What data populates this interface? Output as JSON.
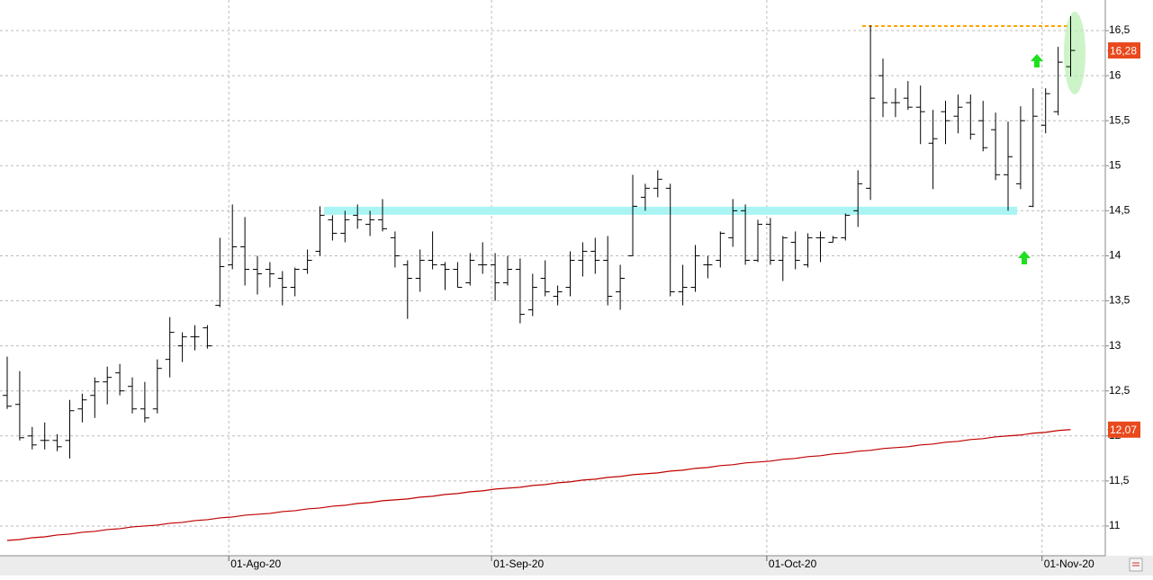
{
  "chart_data": {
    "type": "ohlc",
    "categories": [
      null,
      null,
      null,
      null,
      null,
      null,
      null,
      null,
      null,
      null,
      null,
      null,
      null,
      null,
      null,
      null,
      null,
      null,
      "01-Ago-20",
      null,
      null,
      null,
      null,
      null,
      null,
      null,
      null,
      null,
      null,
      null,
      null,
      null,
      null,
      null,
      null,
      null,
      null,
      null,
      null,
      "01-Sep-20",
      null,
      null,
      null,
      null,
      null,
      null,
      null,
      null,
      null,
      null,
      null,
      null,
      null,
      null,
      null,
      null,
      null,
      null,
      null,
      null,
      null,
      "01-Oct-20",
      null,
      null,
      null,
      null,
      null,
      null,
      null,
      null,
      null,
      null,
      null,
      null,
      null,
      null,
      null,
      null,
      null,
      null,
      null,
      null,
      null,
      "01-Nov-20",
      null,
      null
    ],
    "open": [
      12.45,
      12.35,
      12.0,
      11.95,
      11.95,
      11.95,
      12.3,
      12.45,
      12.6,
      12.7,
      12.55,
      12.3,
      12.3,
      12.85,
      13.0,
      13.1,
      13.2,
      13.45,
      13.9,
      14.1,
      13.85,
      13.85,
      13.75,
      13.65,
      13.85,
      14.05,
      14.4,
      14.25,
      14.45,
      14.35,
      14.4,
      14.2,
      13.9,
      13.75,
      13.95,
      13.9,
      13.85,
      13.7,
      13.9,
      13.9,
      13.7,
      13.85,
      13.4,
      13.75,
      13.55,
      13.65,
      13.95,
      14.05,
      13.95,
      13.6,
      14.0,
      14.65,
      14.75,
      14.75,
      13.6,
      13.65,
      13.9,
      13.95,
      14.2,
      14.5,
      13.95,
      14.35,
      13.95,
      14.15,
      13.9,
      14.2,
      14.15,
      14.2,
      14.5,
      14.75,
      16.0,
      15.7,
      15.75,
      15.65,
      15.25,
      15.6,
      15.55,
      15.7,
      15.5,
      15.4,
      14.9,
      14.8,
      14.55,
      15.45,
      15.6,
      16.1
    ],
    "high": [
      12.88,
      12.72,
      12.1,
      12.15,
      12.02,
      12.4,
      12.47,
      12.65,
      12.77,
      12.8,
      12.65,
      12.6,
      12.85,
      13.32,
      13.15,
      13.23,
      13.23,
      14.2,
      14.57,
      14.43,
      14.0,
      13.93,
      13.83,
      13.87,
      14.07,
      14.55,
      14.45,
      14.5,
      14.57,
      14.5,
      14.63,
      14.27,
      13.95,
      14.07,
      14.27,
      13.93,
      13.93,
      14.03,
      14.15,
      14.03,
      14.0,
      13.97,
      13.8,
      13.95,
      13.67,
      14.05,
      14.15,
      14.2,
      14.22,
      13.9,
      14.9,
      14.8,
      14.95,
      14.8,
      13.9,
      14.12,
      14.0,
      14.27,
      14.63,
      14.57,
      14.4,
      14.42,
      14.22,
      14.27,
      14.25,
      14.27,
      14.22,
      14.47,
      14.95,
      16.56,
      16.19,
      15.86,
      15.94,
      15.89,
      15.62,
      15.72,
      15.79,
      15.79,
      15.72,
      15.59,
      15.49,
      15.66,
      15.86,
      15.86,
      16.32,
      16.66
    ],
    "low": [
      12.3,
      11.95,
      11.85,
      11.85,
      11.83,
      11.75,
      12.15,
      12.2,
      12.35,
      12.45,
      12.25,
      12.15,
      12.25,
      12.65,
      12.82,
      12.95,
      12.97,
      13.43,
      13.85,
      13.67,
      13.57,
      13.65,
      13.45,
      13.55,
      13.8,
      14.0,
      14.17,
      14.15,
      14.3,
      14.22,
      14.27,
      13.87,
      13.3,
      13.6,
      13.85,
      13.62,
      13.65,
      13.67,
      13.8,
      13.5,
      13.67,
      13.25,
      13.33,
      13.55,
      13.45,
      13.55,
      13.77,
      13.8,
      13.45,
      13.4,
      14.0,
      14.5,
      14.65,
      13.55,
      13.45,
      13.6,
      13.75,
      13.87,
      14.1,
      13.9,
      13.93,
      13.9,
      13.72,
      13.85,
      13.87,
      13.93,
      14.15,
      14.17,
      14.32,
      14.62,
      15.54,
      15.54,
      15.62,
      15.24,
      14.74,
      15.24,
      15.36,
      15.29,
      15.16,
      14.84,
      14.5,
      14.74,
      14.54,
      15.36,
      15.56,
      15.99
    ],
    "close": [
      12.33,
      11.98,
      11.9,
      11.95,
      11.88,
      12.28,
      12.4,
      12.6,
      12.65,
      12.5,
      12.3,
      12.2,
      12.75,
      13.15,
      13.1,
      13.1,
      13.0,
      13.88,
      14.1,
      13.85,
      13.8,
      13.8,
      13.65,
      13.85,
      13.95,
      14.45,
      14.25,
      14.4,
      14.4,
      14.4,
      14.3,
      14.0,
      13.75,
      13.95,
      13.9,
      13.85,
      13.65,
      13.95,
      13.9,
      13.7,
      13.85,
      13.35,
      13.65,
      13.6,
      13.6,
      13.95,
      14.05,
      13.95,
      13.55,
      13.75,
      14.55,
      14.75,
      14.85,
      13.6,
      13.65,
      14.0,
      13.9,
      14.25,
      14.5,
      13.95,
      14.35,
      13.95,
      14.2,
      13.95,
      14.2,
      14.2,
      14.2,
      14.45,
      14.8,
      15.75,
      15.7,
      15.7,
      15.65,
      15.6,
      15.3,
      15.5,
      15.65,
      15.35,
      15.2,
      14.9,
      15.1,
      15.5,
      15.55,
      15.8,
      16.15,
      16.28
    ],
    "color": "#000000",
    "last_value": 16.28,
    "last_label": "16,28",
    "moving_average": {
      "color": "#c00000",
      "values": [
        10.84,
        10.85,
        10.87,
        10.88,
        10.9,
        10.91,
        10.93,
        10.94,
        10.96,
        10.97,
        10.99,
        11.0,
        11.01,
        11.03,
        11.04,
        11.06,
        11.07,
        11.09,
        11.1,
        11.12,
        11.13,
        11.14,
        11.16,
        11.17,
        11.19,
        11.2,
        11.22,
        11.23,
        11.25,
        11.26,
        11.28,
        11.29,
        11.3,
        11.32,
        11.33,
        11.35,
        11.36,
        11.38,
        11.39,
        11.41,
        11.42,
        11.43,
        11.45,
        11.46,
        11.48,
        11.49,
        11.51,
        11.52,
        11.54,
        11.55,
        11.57,
        11.58,
        11.59,
        11.61,
        11.62,
        11.64,
        11.65,
        11.67,
        11.68,
        11.7,
        11.71,
        11.72,
        11.74,
        11.75,
        11.77,
        11.78,
        11.8,
        11.81,
        11.83,
        11.84,
        11.86,
        11.87,
        11.88,
        11.9,
        11.91,
        11.93,
        11.94,
        11.96,
        11.97,
        11.99,
        12.0,
        12.01,
        12.03,
        12.04,
        12.06,
        12.07
      ],
      "last_value": 12.07,
      "last_label": "12,07"
    },
    "levels": [
      {
        "value": 16.55,
        "color": "#ffa500"
      },
      {
        "value": 14.5,
        "color": "#aaf4f4"
      }
    ],
    "ylim": [
      10.67,
      16.84
    ],
    "yticks": [
      11,
      {
        "value": 11.5,
        "label": "11,5"
      },
      12,
      {
        "value": 12.5,
        "label": "12,5"
      },
      13,
      {
        "value": 13.5,
        "label": "13,5"
      },
      14,
      {
        "value": 14.5,
        "label": "14,5"
      },
      15,
      {
        "value": 15.5,
        "label": "15,5"
      },
      16,
      {
        "value": 16.5,
        "label": "16,5"
      }
    ],
    "grid": true,
    "label_color": "#e8491d"
  }
}
